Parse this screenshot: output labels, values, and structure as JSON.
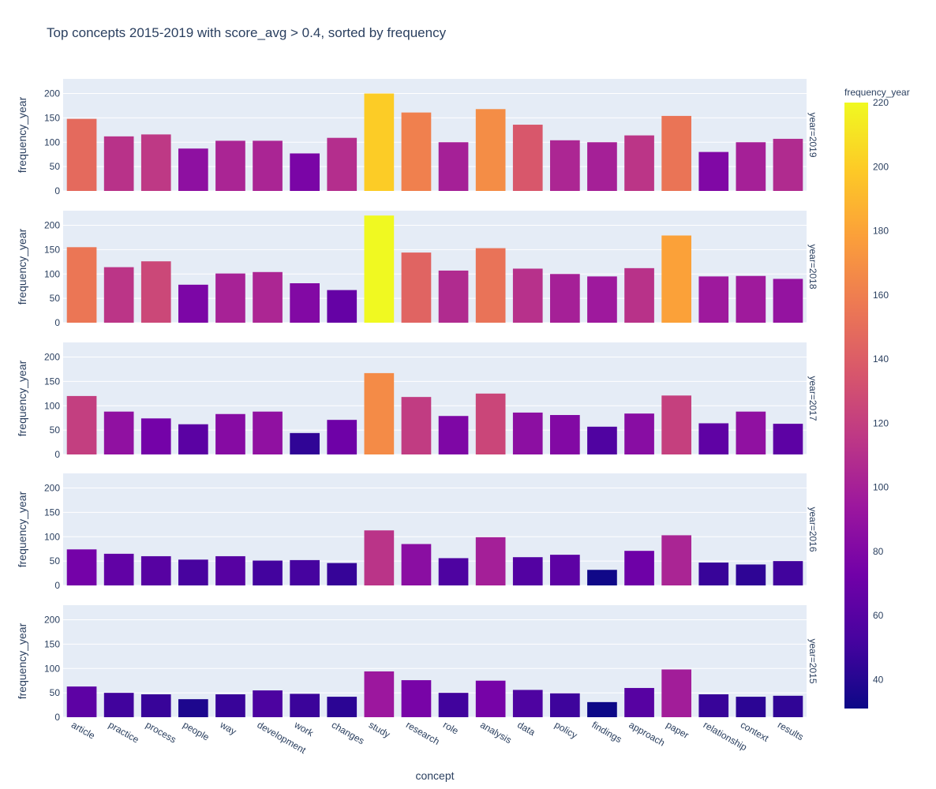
{
  "chart_data": {
    "type": "bar",
    "title": "Top concepts 2015-2019 with score_avg > 0.4, sorted by frequency",
    "xlabel": "concept",
    "ylabel": "frequency_year",
    "ylim": [
      0,
      230
    ],
    "yticks": [
      0,
      50,
      100,
      150,
      200
    ],
    "grid": true,
    "categories": [
      "article",
      "practice",
      "process",
      "people",
      "way",
      "development",
      "work",
      "changes",
      "study",
      "research",
      "role",
      "analysis",
      "data",
      "policy",
      "findings",
      "approach",
      "paper",
      "relationship",
      "context",
      "results"
    ],
    "facets": [
      {
        "label": "year=2019",
        "values": [
          148,
          112,
          116,
          87,
          103,
          103,
          77,
          109,
          200,
          161,
          100,
          168,
          136,
          104,
          100,
          114,
          154,
          80,
          100,
          107
        ]
      },
      {
        "label": "year=2018",
        "values": [
          155,
          114,
          126,
          78,
          101,
          104,
          81,
          67,
          220,
          144,
          107,
          153,
          111,
          100,
          95,
          112,
          179,
          95,
          96,
          90
        ]
      },
      {
        "label": "year=2017",
        "values": [
          120,
          88,
          74,
          62,
          83,
          88,
          44,
          71,
          167,
          118,
          79,
          125,
          86,
          81,
          57,
          84,
          121,
          64,
          88,
          63
        ]
      },
      {
        "label": "year=2016",
        "values": [
          74,
          65,
          60,
          53,
          60,
          51,
          52,
          46,
          113,
          85,
          56,
          99,
          58,
          63,
          32,
          71,
          103,
          47,
          43,
          50
        ]
      },
      {
        "label": "year=2015",
        "values": [
          63,
          50,
          47,
          37,
          47,
          55,
          48,
          42,
          94,
          76,
          50,
          75,
          56,
          49,
          31,
          60,
          98,
          47,
          42,
          44
        ]
      }
    ],
    "colorbar": {
      "title": "frequency_year",
      "range": [
        31,
        220
      ],
      "ticks": [
        40,
        60,
        80,
        100,
        120,
        140,
        160,
        180,
        200,
        220
      ],
      "colorscale": [
        "#0d0887",
        "#46039f",
        "#7201a8",
        "#9c179e",
        "#bd3786",
        "#d8576b",
        "#ed7953",
        "#fb9f3a",
        "#fdca26",
        "#f0f921"
      ]
    }
  }
}
